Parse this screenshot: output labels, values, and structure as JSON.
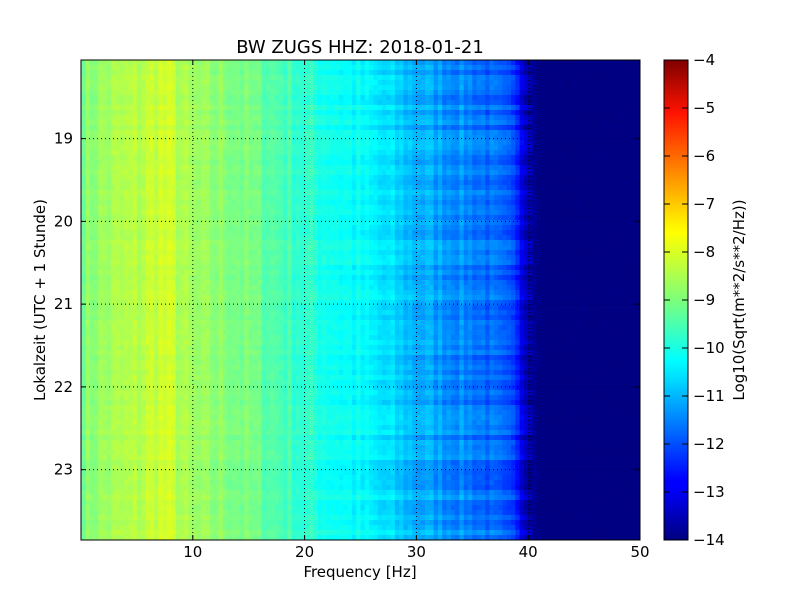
{
  "chart_data": {
    "type": "heatmap",
    "title": "BW ZUGS HHZ: 2018-01-21",
    "xlabel": "Frequency [Hz]",
    "ylabel": "Lokalzeit (UTC + 1 Stunde)",
    "xlim": [
      0,
      50
    ],
    "ylim": [
      18.05,
      23.85
    ],
    "y_inverted": true,
    "x_ticks": [
      10,
      20,
      30,
      40,
      50
    ],
    "y_ticks": [
      19,
      20,
      21,
      22,
      23
    ],
    "grid": true,
    "colormap": "jet",
    "colorbar": {
      "label": "Log10(Sqrt(m**2/s**2/Hz))",
      "range": [
        -14,
        -4
      ],
      "ticks": [
        -4,
        -5,
        -6,
        -7,
        -8,
        -9,
        -10,
        -11,
        -12,
        -13,
        -14
      ]
    },
    "spectrum_profile": {
      "frequency_hz": [
        0,
        2,
        5,
        7,
        8,
        10,
        13,
        15,
        18,
        20,
        22,
        25,
        28,
        30,
        32,
        35,
        37,
        39,
        40,
        41,
        42,
        50
      ],
      "log10_amplitude": [
        -9.0,
        -8.7,
        -8.5,
        -8.2,
        -8.3,
        -8.8,
        -8.9,
        -9.1,
        -9.5,
        -9.8,
        -10.0,
        -10.3,
        -10.7,
        -11.0,
        -11.2,
        -11.5,
        -11.8,
        -12.3,
        -13.5,
        -14.0,
        -14.0,
        -14.0
      ]
    }
  }
}
